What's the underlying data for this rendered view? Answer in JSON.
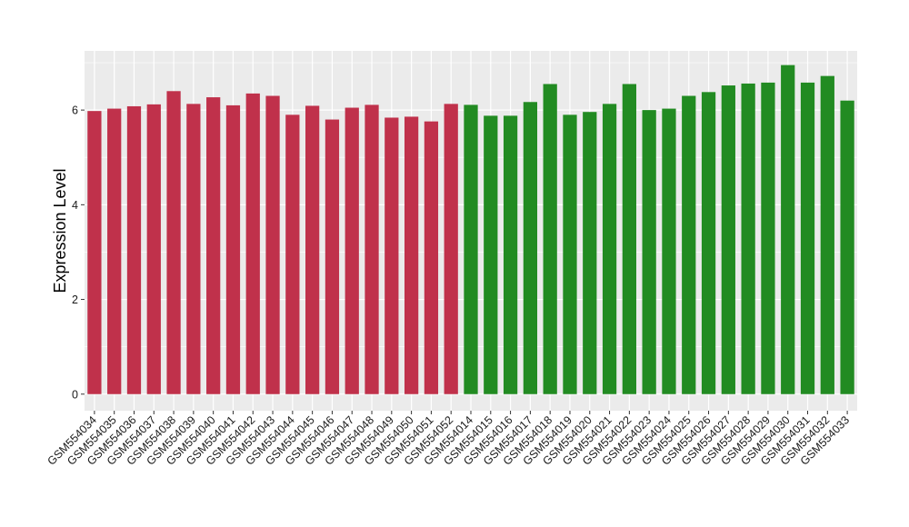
{
  "chart_data": {
    "type": "bar",
    "title": "",
    "xlabel": "",
    "ylabel": "Expression Level",
    "ylim": [
      -0.35,
      7.25
    ],
    "yticks": [
      0,
      2,
      4,
      6
    ],
    "grid": true,
    "legend": "none",
    "colors": {
      "group1": "#c0314b",
      "group2": "#228b22",
      "panel": "#ebebeb",
      "grid": "#ffffff"
    },
    "categories": [
      "GSM554034",
      "GSM554035",
      "GSM554036",
      "GSM554037",
      "GSM554038",
      "GSM554039",
      "GSM554040",
      "GSM554041",
      "GSM554042",
      "GSM554043",
      "GSM554044",
      "GSM554045",
      "GSM554046",
      "GSM554047",
      "GSM554048",
      "GSM554049",
      "GSM554050",
      "GSM554051",
      "GSM554052",
      "GSM554014",
      "GSM554015",
      "GSM554016",
      "GSM554017",
      "GSM554018",
      "GSM554019",
      "GSM554020",
      "GSM554021",
      "GSM554022",
      "GSM554023",
      "GSM554024",
      "GSM554025",
      "GSM554026",
      "GSM554027",
      "GSM554028",
      "GSM554029",
      "GSM554030",
      "GSM554031",
      "GSM554032",
      "GSM554033"
    ],
    "values": [
      5.98,
      6.03,
      6.08,
      6.12,
      6.4,
      6.13,
      6.27,
      6.1,
      6.35,
      6.3,
      5.9,
      6.09,
      5.8,
      6.05,
      6.11,
      5.84,
      5.86,
      5.76,
      6.13,
      6.11,
      5.88,
      5.88,
      6.17,
      6.55,
      5.9,
      5.96,
      6.13,
      6.55,
      6.0,
      6.03,
      6.3,
      6.38,
      6.52,
      6.56,
      6.58,
      6.95,
      6.58,
      6.72,
      6.2
    ],
    "groups": [
      1,
      1,
      1,
      1,
      1,
      1,
      1,
      1,
      1,
      1,
      1,
      1,
      1,
      1,
      1,
      1,
      1,
      1,
      1,
      2,
      2,
      2,
      2,
      2,
      2,
      2,
      2,
      2,
      2,
      2,
      2,
      2,
      2,
      2,
      2,
      2,
      2,
      2,
      2
    ]
  }
}
